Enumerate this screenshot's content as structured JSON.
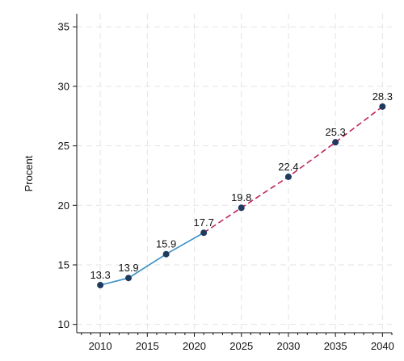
{
  "colors": {
    "observed_line": "#3a8fc6",
    "projected_line": "#c0245c",
    "points": "#1f3a5f",
    "grid": "#e3e3e3",
    "axis": "#111111"
  },
  "chart_data": {
    "type": "line",
    "ylabel": "Procent",
    "xlabel": "",
    "xlim": [
      2007.5,
      2041
    ],
    "ylim": [
      9.3,
      36.1
    ],
    "xticks": [
      2010,
      2015,
      2020,
      2025,
      2030,
      2035,
      2040
    ],
    "yticks": [
      10,
      15,
      20,
      25,
      30,
      35
    ],
    "x_tick_labels": [
      "2010",
      "2015",
      "2020",
      "2025",
      "2030",
      "2035",
      "2040"
    ],
    "y_tick_labels": [
      "10",
      "15",
      "20",
      "25",
      "30",
      "35"
    ],
    "grid": true,
    "points": [
      {
        "x": 2010,
        "y": 13.3,
        "label": "13.3"
      },
      {
        "x": 2013,
        "y": 13.9,
        "label": "13.9"
      },
      {
        "x": 2017,
        "y": 15.9,
        "label": "15.9"
      },
      {
        "x": 2021,
        "y": 17.7,
        "label": "17.7"
      },
      {
        "x": 2025,
        "y": 19.8,
        "label": "19.8"
      },
      {
        "x": 2030,
        "y": 22.4,
        "label": "22.4"
      },
      {
        "x": 2035,
        "y": 25.3,
        "label": "25.3"
      },
      {
        "x": 2040,
        "y": 28.3,
        "label": "28.3"
      }
    ],
    "series": [
      {
        "style": "solid",
        "x": [
          2010,
          2013,
          2017,
          2021
        ],
        "values": [
          13.3,
          13.9,
          15.9,
          17.7
        ]
      },
      {
        "style": "dashed",
        "x": [
          2021,
          2025,
          2030,
          2035,
          2040
        ],
        "values": [
          17.7,
          19.8,
          22.4,
          25.3,
          28.3
        ]
      }
    ]
  }
}
